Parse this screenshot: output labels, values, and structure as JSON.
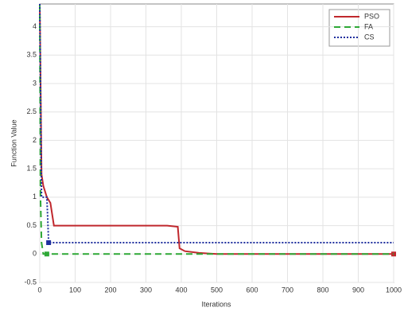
{
  "chart_data": {
    "type": "line",
    "xlabel": "Iterations",
    "ylabel": "Function Value",
    "xlim": [
      0,
      1000
    ],
    "ylim": [
      -0.5,
      4.4
    ],
    "xticks": [
      0,
      100,
      200,
      300,
      400,
      500,
      600,
      700,
      800,
      900,
      1000
    ],
    "yticks": [
      -0.5,
      0,
      0.5,
      1,
      1.5,
      2,
      2.5,
      3,
      3.5,
      4
    ],
    "grid": true,
    "legend": "upper right",
    "series": [
      {
        "name": "PSO",
        "color": "#c0282d",
        "style": "solid",
        "marker": 14,
        "x": [
          0,
          5,
          10,
          20,
          30,
          40,
          360,
          390,
          395,
          410,
          450,
          500,
          700,
          855,
          1000
        ],
        "values": [
          4.4,
          1.4,
          1.2,
          1.0,
          0.9,
          0.5,
          0.5,
          0.48,
          0.1,
          0.05,
          0.02,
          0,
          0,
          0,
          0
        ]
      },
      {
        "name": "FA",
        "color": "#2ea836",
        "style": "dashed",
        "marker": 4,
        "x": [
          0,
          2,
          5,
          10,
          20,
          1000
        ],
        "values": [
          4.4,
          1.0,
          0.2,
          0,
          0,
          0
        ]
      },
      {
        "name": "CS",
        "color": "#1f2f9e",
        "style": "dotted",
        "marker": 4,
        "x": [
          0,
          5,
          20,
          22,
          25,
          1000
        ],
        "values": [
          4.4,
          1.0,
          1.0,
          0.7,
          0.2,
          0.2
        ]
      }
    ]
  }
}
